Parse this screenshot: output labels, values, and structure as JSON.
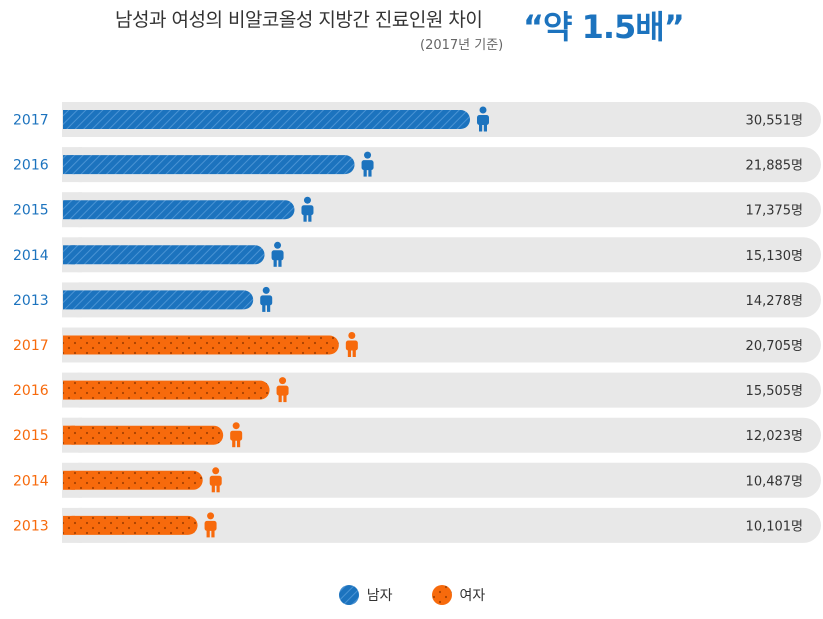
{
  "header": {
    "title": "남성과 여성의 비알코올성 지방간 진료인원 차이",
    "subtitle": "(2017년 기준)",
    "highlight": "“약 1.5배”"
  },
  "legend": {
    "male_label": "남자",
    "female_label": "여자"
  },
  "colors": {
    "male": "#1c73be",
    "female": "#f76a0c",
    "track": "#e8e8e8"
  },
  "chart_data": {
    "type": "bar",
    "orientation": "horizontal",
    "series": [
      {
        "name": "남자",
        "categories": [
          "2017",
          "2016",
          "2015",
          "2014",
          "2013"
        ],
        "values": [
          30551,
          21885,
          17375,
          15130,
          14278
        ],
        "labels": [
          "30,551명",
          "21,885명",
          "17,375명",
          "15,130명",
          "14,278명"
        ]
      },
      {
        "name": "여자",
        "categories": [
          "2017",
          "2016",
          "2015",
          "2014",
          "2013"
        ],
        "values": [
          20705,
          15505,
          12023,
          10487,
          10101
        ],
        "labels": [
          "20,705명",
          "15,505명",
          "12,023명",
          "10,487명",
          "10,101명"
        ]
      }
    ],
    "grid": false,
    "legend_position": "bottom-center"
  }
}
